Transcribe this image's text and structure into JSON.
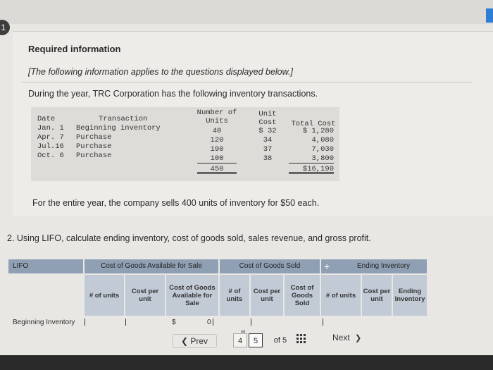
{
  "header": {
    "step_number": "1",
    "title": "Required information",
    "note": "[The following information applies to the questions displayed below.]"
  },
  "problem": {
    "intro": "During the year, TRC Corporation has the following inventory transactions.",
    "columns": {
      "date": "Date",
      "transaction": "Transaction",
      "units_line1": "Number of",
      "units_line2": "Units",
      "unit_cost_line1": "Unit",
      "unit_cost_line2": "Cost",
      "total_cost": "Total Cost"
    },
    "rows": [
      {
        "date": "Jan. 1",
        "transaction": "Beginning inventory",
        "units": "40",
        "unit_cost": "$ 32",
        "total": "$ 1,280"
      },
      {
        "date": "Apr. 7",
        "transaction": "Purchase",
        "units": "120",
        "unit_cost": "34",
        "total": "4,080"
      },
      {
        "date": "Jul.16",
        "transaction": "Purchase",
        "units": "190",
        "unit_cost": "37",
        "total": "7,030"
      },
      {
        "date": "Oct. 6",
        "transaction": "Purchase",
        "units": "100",
        "unit_cost": "38",
        "total": "3,800"
      }
    ],
    "totals": {
      "units": "450",
      "total": "$16,190"
    },
    "year_note": "For the entire year, the company sells 400 units of inventory for $50 each."
  },
  "question": {
    "text": "2. Using LIFO, calculate ending inventory, cost of goods sold, sales revenue, and gross profit."
  },
  "lifo_table": {
    "method_label": "LIFO",
    "groups": {
      "available": "Cost of Goods Available for Sale",
      "sold": "Cost of Goods Sold",
      "ending": "Ending Inventory"
    },
    "subheaders": {
      "units": "# of units",
      "cost_per_unit": "Cost per unit",
      "cogas": "Cost of Goods Available for Sale",
      "cogs_units": "# of units",
      "cogs_cost_per_unit": "Cost per unit",
      "cogs": "Cost of Goods Sold",
      "ending_units": "# of units",
      "ending_cost_per_unit": "Cost per unit",
      "ending_inventory": "Ending Inventory"
    },
    "first_row": {
      "label": "Beginning Inventory",
      "cogas_prefix": "$",
      "cogas_value": "0"
    }
  },
  "navigation": {
    "prev": "Prev",
    "page_left": "4",
    "page_current": "5",
    "of_text": "of 5",
    "next": "Next"
  }
}
